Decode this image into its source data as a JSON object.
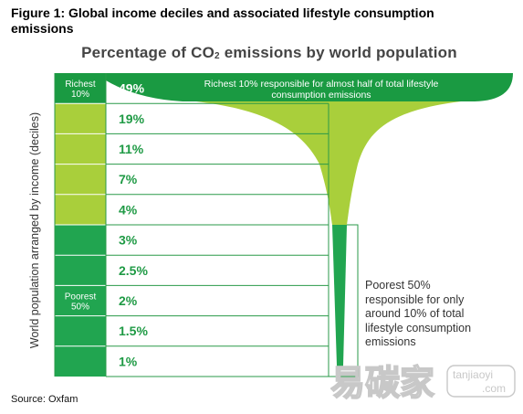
{
  "figure_title": "Figure 1: Global income deciles and associated lifestyle consumption emissions",
  "source": "Source: Oxfam",
  "watermark": {
    "chars": "易碳家",
    "domain_line1": "tanjiaoyi",
    "domain_line2": ".com"
  },
  "colors": {
    "rich_green": "#1a9a42",
    "light_green": "#a9cf3b",
    "poor_green": "#21a550",
    "pct_text": "#1f9a45",
    "line": "#2a9a48"
  },
  "chart_data": {
    "type": "bar",
    "title": "Percentage of CO₂ emissions by world population",
    "ylabel": "World population arranged by income (deciles)",
    "categories": [
      "Richest 10%",
      "",
      "",
      "",
      "",
      "",
      "",
      "",
      "",
      "Poorest 50%"
    ],
    "group_labels": {
      "richest": "Richest\n10%",
      "poorest": "Poorest\n50%"
    },
    "values": [
      49,
      19,
      11,
      7,
      4,
      3,
      2.5,
      2,
      1.5,
      1
    ],
    "value_labels": [
      "49%",
      "19%",
      "11%",
      "7%",
      "4%",
      "3%",
      "2.5%",
      "2%",
      "1.5%",
      "1%"
    ],
    "annotations": {
      "richest": "Richest 10% responsible for almost half of total lifestyle consumption emissions",
      "poorest": "Poorest 50% responsible for only around 10% of total lifestyle consumption emissions"
    }
  }
}
